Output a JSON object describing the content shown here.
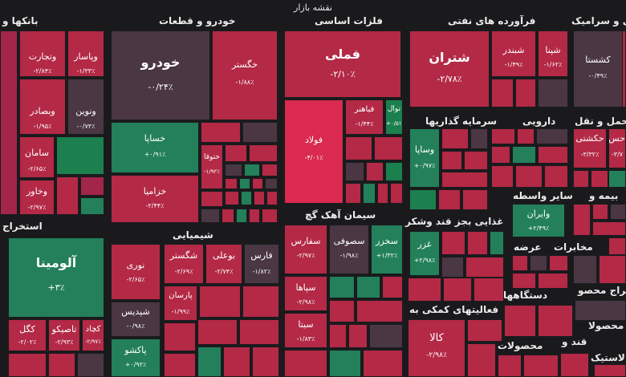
{
  "title": "نقشه بازار",
  "colors": {
    "dark": "#a3254a",
    "red": "#b32946",
    "bright": "#da2a4f",
    "neutral": "#4a3743",
    "green": "#23805a",
    "lgreen": "#1c7f4e",
    "bg": "#1a1a1d"
  },
  "sectors": [
    {
      "label": "بانکها و"
    },
    {
      "label": "خودرو و قطعات"
    },
    {
      "label": "فلزات اساسی"
    },
    {
      "label": "فرآورده های نفتی"
    },
    {
      "label": "کاشی و سرامیک"
    },
    {
      "label": "سرمایه گذاریها"
    },
    {
      "label": "دارویی"
    },
    {
      "label": "حمل و نقل"
    },
    {
      "label": "سیمان آهک گچ"
    },
    {
      "label": "غذایی بجز قند وشکر"
    },
    {
      "label": "سایر واسطه"
    },
    {
      "label": "بیمه و"
    },
    {
      "label": "استخراج"
    },
    {
      "label": "شیمیایی"
    },
    {
      "label": "عرضه"
    },
    {
      "label": "مخابرات"
    },
    {
      "label": "فعالیتهای کمکی به"
    },
    {
      "label": "استخراج محصو"
    },
    {
      "label": "دستگاهها"
    },
    {
      "label": "قند و"
    },
    {
      "label": "محصولات"
    },
    {
      "label": "لاستیک"
    },
    {
      "label": "محصولا"
    }
  ],
  "tiles": [
    {
      "name": "وپاسار",
      "change": "-۱/۳۳٪",
      "color": "red"
    },
    {
      "name": "وتجارت",
      "change": "-۲/۸۴٪",
      "color": "red"
    },
    {
      "name": "ونوین",
      "change": "-۰/۷۳٪",
      "color": "neutral"
    },
    {
      "name": "وبصادر",
      "change": "-۱/۹۵٪",
      "color": "red"
    },
    {
      "name": "سامان",
      "change": "-۲/۶۵٪",
      "color": "red"
    },
    {
      "name": "وخاور",
      "change": "-۲/۹۷٪",
      "color": "red"
    },
    {
      "name": "خودرو",
      "change": "-۰/۲۴٪",
      "color": "neutral"
    },
    {
      "name": "خگستر",
      "change": "-۱/۸۸٪",
      "color": "red"
    },
    {
      "name": "خساپا",
      "change": "+۰/۹۱٪",
      "color": "green"
    },
    {
      "name": "ختوقا",
      "change": "-۱/۹۲٪",
      "color": "red"
    },
    {
      "name": "خزامیا",
      "change": "-۲/۴۴٪",
      "color": "red"
    },
    {
      "name": "فملی",
      "change": "-۲/۱۰٪",
      "color": "red"
    },
    {
      "name": "فولاد",
      "change": "-۴/۰۱٪",
      "color": "bright"
    },
    {
      "name": "فباهنر",
      "change": "-۱/۴۴٪",
      "color": "red"
    },
    {
      "name": "نوال",
      "change": "+۰/۵۱٪",
      "color": "lgreen"
    },
    {
      "name": "شتران",
      "change": "-۲/۷۸٪",
      "color": "red"
    },
    {
      "name": "شبندر",
      "change": "-۱/۴۹٪",
      "color": "red"
    },
    {
      "name": "شپنا",
      "change": "-۱/۶۲٪",
      "color": "red"
    },
    {
      "name": "کشستا",
      "change": "-۰/۴۹٪",
      "color": "neutral"
    },
    {
      "name": "وساپا",
      "change": "+۰/۹۷٪",
      "color": "green"
    },
    {
      "name": "حکشتی",
      "change": "-۳/۳۲٪",
      "color": "red"
    },
    {
      "name": "حس",
      "change": "-۳/۷",
      "color": "red"
    },
    {
      "name": "وایران",
      "change": "+۲/۴۹٪",
      "color": "green"
    },
    {
      "name": "آلومینا",
      "change": "+۳٪",
      "color": "green"
    },
    {
      "name": "کگل",
      "change": "-۲/۰۲٪",
      "color": "red"
    },
    {
      "name": "تاصیکو",
      "change": "-۲/۹۳٪",
      "color": "red"
    },
    {
      "name": "کچاد",
      "change": "-۲/۹۷٪",
      "color": "red"
    },
    {
      "name": "نوری",
      "change": "-۲/۶۵٪",
      "color": "red"
    },
    {
      "name": "شگستر",
      "change": "-۲/۶۹٪",
      "color": "red"
    },
    {
      "name": "بوعلی",
      "change": "-۲/۷۴٪",
      "color": "red"
    },
    {
      "name": "فارس",
      "change": "-۱/۸۲٪",
      "color": "neutral"
    },
    {
      "name": "پارسان",
      "change": "-۱/۹۹٪",
      "color": "red"
    },
    {
      "name": "شپدیس",
      "change": "-۰/۹۸٪",
      "color": "neutral"
    },
    {
      "name": "پاکشو",
      "change": "+۰/۹۲٪",
      "color": "green"
    },
    {
      "name": "سفارس",
      "change": "-۲/۹۷٪",
      "color": "red"
    },
    {
      "name": "سصوفی",
      "change": "-۱/۹۸٪",
      "color": "neutral"
    },
    {
      "name": "سخزر",
      "change": "+۱/۳۲٪",
      "color": "green"
    },
    {
      "name": "سپاها",
      "change": "-۲/۹۸٪",
      "color": "red"
    },
    {
      "name": "سیتا",
      "change": "-۱/۸۳٪",
      "color": "red"
    },
    {
      "name": "غزر",
      "change": "+۲/۹۸٪",
      "color": "green"
    },
    {
      "name": "کالا",
      "change": "-۲/۹۸٪",
      "color": "red"
    }
  ]
}
